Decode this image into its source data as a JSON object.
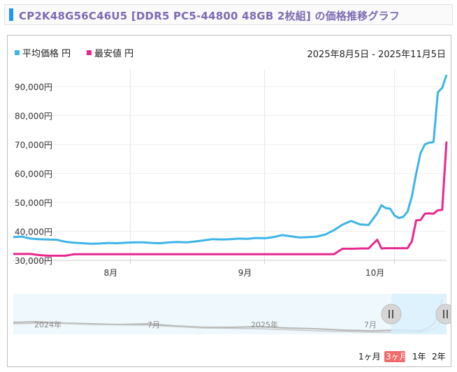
{
  "title": "CP2K48G56C46U5 [DDR5 PC5-44800 48GB 2枚組] の価格推移グラフ",
  "legend": {
    "avg": {
      "label": "平均価格 円",
      "color": "#3cb4e8"
    },
    "min": {
      "label": "最安値 円",
      "color": "#e8278f"
    }
  },
  "date_range": "2025年8月5日 - 2025年11月5日",
  "navigator": {
    "labels": [
      "2024年",
      "7月",
      "2025年",
      "7月"
    ],
    "handle_left_icon": "pause-handle-icon",
    "handle_right_icon": "pause-handle-icon"
  },
  "periods": [
    {
      "label": "1ヶ月",
      "active": false
    },
    {
      "label": "3ヶ月",
      "active": true
    },
    {
      "label": "1年",
      "active": false
    },
    {
      "label": "2年",
      "active": false
    }
  ],
  "chart_data": {
    "type": "line",
    "title": "",
    "xlabel": "",
    "ylabel": "",
    "ylim": [
      30000,
      96000
    ],
    "yticks": [
      30000,
      40000,
      50000,
      60000,
      70000,
      80000,
      90000
    ],
    "ytick_labels": [
      "30,000円",
      "40,000円",
      "50,000円",
      "60,000円",
      "70,000円",
      "80,000円",
      "90,000円"
    ],
    "xticks": [
      {
        "label": "8月",
        "day": 27
      },
      {
        "label": "9月",
        "day": 58
      },
      {
        "label": "10月",
        "day": 88
      }
    ],
    "x_unit": "day of 2025-08-05..2025-11-05 range (0-92)",
    "grid": true,
    "legend_position": "top-left",
    "series": [
      {
        "name": "平均価格",
        "color": "#3cb4e8",
        "x": [
          0,
          2,
          4,
          6,
          8,
          10,
          12,
          14,
          16,
          18,
          20,
          22,
          24,
          26,
          28,
          30,
          32,
          34,
          36,
          38,
          40,
          42,
          44,
          46,
          48,
          50,
          52,
          54,
          56,
          58,
          60,
          62,
          64,
          66,
          68,
          70,
          72,
          74,
          76,
          78,
          80,
          82,
          84,
          85,
          86,
          87,
          88,
          89,
          90,
          91,
          92,
          93,
          94,
          95,
          96,
          97,
          98,
          99,
          100
        ],
        "y": [
          38000,
          38200,
          37500,
          37300,
          37200,
          37100,
          36400,
          36100,
          35900,
          35700,
          35800,
          36000,
          35900,
          36100,
          36200,
          36200,
          36000,
          35900,
          36200,
          36300,
          36200,
          36500,
          36900,
          37300,
          37200,
          37300,
          37500,
          37400,
          37700,
          37600,
          38000,
          38700,
          38300,
          37900,
          38000,
          38200,
          38900,
          40400,
          42300,
          43600,
          42400,
          42200,
          46200,
          49000,
          48000,
          47800,
          45500,
          44600,
          45000,
          46800,
          52000,
          60000,
          67000,
          70000,
          70600,
          70800,
          88000,
          89500,
          94000
        ]
      },
      {
        "name": "最安値",
        "color": "#e8278f",
        "x": [
          0,
          4,
          6,
          8,
          10,
          12,
          14,
          16,
          18,
          20,
          22,
          24,
          26,
          28,
          30,
          32,
          34,
          36,
          38,
          40,
          42,
          44,
          46,
          48,
          50,
          52,
          54,
          56,
          58,
          60,
          62,
          64,
          66,
          68,
          70,
          72,
          74,
          76,
          78,
          80,
          82,
          84,
          85,
          86,
          87,
          88,
          89,
          90,
          91,
          92,
          93,
          94,
          95,
          96,
          97,
          98,
          99,
          100
        ],
        "y": [
          32200,
          32200,
          31800,
          31600,
          31600,
          31600,
          32100,
          32100,
          32100,
          32100,
          32100,
          32100,
          32100,
          32100,
          32100,
          32100,
          32100,
          32100,
          32100,
          32100,
          32100,
          32100,
          32100,
          32100,
          32100,
          32100,
          32100,
          32100,
          32100,
          32100,
          32100,
          32100,
          32100,
          32100,
          32100,
          32100,
          32100,
          34000,
          34000,
          34100,
          34100,
          37100,
          34100,
          34200,
          34200,
          34200,
          34200,
          34200,
          34200,
          36500,
          43800,
          43900,
          46100,
          46200,
          46100,
          47300,
          47400,
          71000
        ]
      }
    ]
  }
}
